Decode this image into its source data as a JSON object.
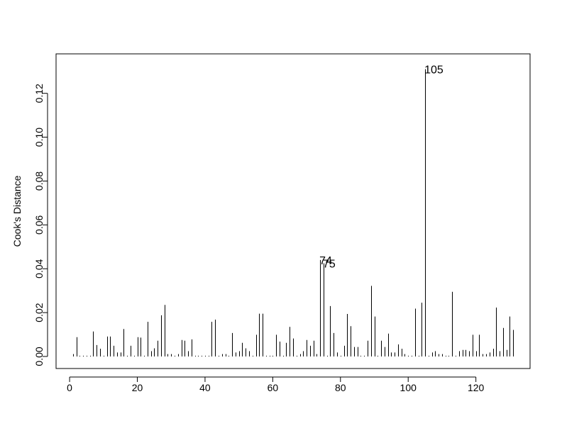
{
  "chart_data": {
    "type": "bar",
    "title": "",
    "xlabel": "",
    "ylabel": "Cook's Distance",
    "xlim": [
      -4,
      136
    ],
    "ylim": [
      -0.0055,
      0.138
    ],
    "xticks": [
      0,
      20,
      40,
      60,
      80,
      100,
      120
    ],
    "yticks": [
      0.0,
      0.02,
      0.04,
      0.06,
      0.08,
      0.1,
      0.12
    ],
    "ytick_labels": [
      "0.00",
      "0.02",
      "0.04",
      "0.06",
      "0.08",
      "0.10",
      "0.12"
    ],
    "grid": false,
    "legend": "none",
    "bar_color": "#000000",
    "x": [
      1,
      2,
      3,
      4,
      5,
      6,
      7,
      8,
      9,
      10,
      11,
      12,
      13,
      14,
      15,
      16,
      17,
      18,
      19,
      20,
      21,
      22,
      23,
      24,
      25,
      26,
      27,
      28,
      29,
      30,
      31,
      32,
      33,
      34,
      35,
      36,
      37,
      38,
      39,
      40,
      41,
      42,
      43,
      44,
      45,
      46,
      47,
      48,
      49,
      50,
      51,
      52,
      53,
      54,
      55,
      56,
      57,
      58,
      59,
      60,
      61,
      62,
      63,
      64,
      65,
      66,
      67,
      68,
      69,
      70,
      71,
      72,
      73,
      74,
      75,
      76,
      77,
      78,
      79,
      80,
      81,
      82,
      83,
      84,
      85,
      86,
      87,
      88,
      89,
      90,
      91,
      92,
      93,
      94,
      95,
      96,
      97,
      98,
      99,
      100,
      101,
      102,
      103,
      104,
      105,
      106,
      107,
      108,
      109,
      110,
      111,
      112,
      113,
      114,
      115,
      116,
      117,
      118,
      119,
      120,
      121,
      122,
      123,
      124,
      125,
      126,
      127,
      128,
      129,
      130,
      131
    ],
    "values": [
      0.0011,
      0.0088,
      0.0003,
      0.0003,
      0.0003,
      0.0003,
      0.0114,
      0.0052,
      0.0035,
      0.0003,
      0.0091,
      0.0091,
      0.0049,
      0.0018,
      0.0018,
      0.0125,
      0.0003,
      0.0049,
      0.0003,
      0.0088,
      0.0086,
      0.0003,
      0.0158,
      0.0024,
      0.0037,
      0.0072,
      0.0188,
      0.0235,
      0.0011,
      0.0011,
      0.0003,
      0.0011,
      0.0075,
      0.0072,
      0.0024,
      0.0078,
      0.0003,
      0.0003,
      0.0003,
      0.0003,
      0.0003,
      0.0158,
      0.0168,
      0.0003,
      0.0011,
      0.0011,
      0.0003,
      0.0107,
      0.0018,
      0.0024,
      0.0062,
      0.0037,
      0.0024,
      0.0003,
      0.0099,
      0.0195,
      0.0195,
      0.0003,
      0.0003,
      0.0003,
      0.0099,
      0.0068,
      0.0003,
      0.0062,
      0.0135,
      0.0082,
      0.0003,
      0.0011,
      0.0024,
      0.0075,
      0.0049,
      0.0072,
      0.0011,
      0.044,
      0.0425,
      0.0003,
      0.023,
      0.0107,
      0.0018,
      0.0003,
      0.0049,
      0.0194,
      0.0138,
      0.0043,
      0.0043,
      0.0003,
      0.0003,
      0.0072,
      0.0322,
      0.0182,
      0.0003,
      0.0072,
      0.0043,
      0.0104,
      0.0018,
      0.0018,
      0.0055,
      0.0035,
      0.0011,
      0.0003,
      0.0003,
      0.0218,
      0.0003,
      0.0245,
      0.131,
      0.0003,
      0.0018,
      0.0024,
      0.0011,
      0.0011,
      0.0003,
      0.0003,
      0.0295,
      0.0003,
      0.0024,
      0.003,
      0.003,
      0.0024,
      0.0099,
      0.0024,
      0.0099,
      0.0011,
      0.0011,
      0.0018,
      0.0035,
      0.0223,
      0.0024,
      0.013,
      0.003,
      0.0182,
      0.0121
    ],
    "annotations": [
      {
        "label": "74",
        "x": 74,
        "y": 0.044
      },
      {
        "label": "75",
        "x": 75,
        "y": 0.0425
      },
      {
        "label": "105",
        "x": 105,
        "y": 0.131
      }
    ]
  }
}
